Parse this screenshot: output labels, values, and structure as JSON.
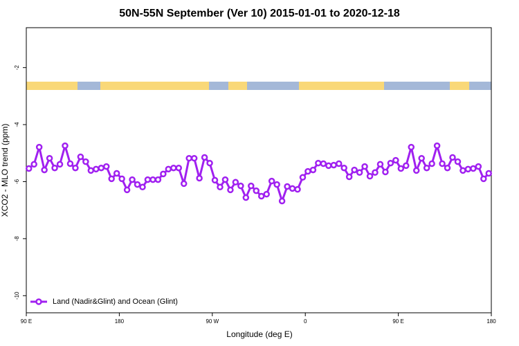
{
  "chart_data": {
    "type": "line",
    "title": "50N-55N September (Ver 10)   2015-01-01 to 2020-12-18",
    "x_label": "Longitude (deg E)",
    "y_label": "XCO2 - MLO trend (ppm)",
    "xlim": [
      90,
      540
    ],
    "ylim": [
      -10.6,
      -0.6
    ],
    "xticks": [
      {
        "value": 90,
        "label": "90 E"
      },
      180,
      {
        "value": 270,
        "label": "90 W"
      },
      {
        "value": 360,
        "label": "0"
      },
      {
        "value": 450,
        "label": "90 E"
      },
      {
        "value": 540,
        "label": "180"
      }
    ],
    "yticks": [
      -2,
      -4,
      -6,
      -8,
      -10
    ],
    "legend": "bottom-left",
    "x": [
      92.5,
      97.5,
      102.5,
      107.5,
      112.5,
      117.5,
      122.5,
      127.5,
      132.5,
      137.5,
      142.5,
      147.5,
      152.5,
      157.5,
      162.5,
      167.5,
      172.5,
      177.5,
      182.5,
      187.5,
      192.5,
      197.5,
      202.5,
      207.5,
      212.5,
      217.5,
      222.5,
      227.5,
      232.5,
      237.5,
      242.5,
      247.5,
      252.5,
      257.5,
      262.5,
      267.5,
      272.5,
      277.5,
      282.5,
      287.5,
      292.5,
      297.5,
      302.5,
      307.5,
      312.5,
      317.5,
      322.5,
      327.5,
      332.5,
      337.5,
      342.5,
      347.5,
      352.5,
      357.5,
      362.5,
      367.5,
      372.5,
      377.5,
      382.5,
      387.5,
      392.5,
      397.5,
      402.5,
      407.5,
      412.5,
      417.5,
      422.5,
      427.5,
      432.5,
      437.5,
      442.5,
      447.5,
      452.5,
      457.5,
      462.5,
      467.5,
      472.5,
      477.5,
      482.5,
      487.5,
      492.5,
      497.5,
      502.5,
      507.5,
      512.5,
      517.5,
      522.5,
      527.5,
      532.5,
      537.5
    ],
    "series": [
      {
        "name": "Land (Nadir&Glint) and Ocean (Glint)",
        "color": "#a020f0",
        "values": [
          -5.54,
          -5.39,
          -4.79,
          -5.59,
          -5.18,
          -5.52,
          -5.39,
          -4.74,
          -5.37,
          -5.52,
          -5.13,
          -5.3,
          -5.61,
          -5.56,
          -5.52,
          -5.47,
          -5.9,
          -5.71,
          -5.9,
          -6.29,
          -5.93,
          -6.1,
          -6.19,
          -5.93,
          -5.93,
          -5.93,
          -5.73,
          -5.56,
          -5.52,
          -5.52,
          -6.07,
          -5.18,
          -5.18,
          -5.88,
          -5.15,
          -5.35,
          -5.95,
          -6.19,
          -5.93,
          -6.29,
          -6.02,
          -6.15,
          -6.56,
          -6.15,
          -6.32,
          -6.51,
          -6.44,
          -5.98,
          -6.1,
          -6.68,
          -6.17,
          -6.24,
          -6.27,
          -5.85,
          -5.64,
          -5.59,
          -5.35,
          -5.37,
          -5.44,
          -5.42,
          -5.37,
          -5.52,
          -5.83,
          -5.59,
          -5.68,
          -5.47,
          -5.81,
          -5.68,
          -5.39,
          -5.66,
          -5.35,
          -5.25,
          -5.54,
          -5.44,
          -4.79,
          -5.61,
          -5.18,
          -5.52,
          -5.37,
          -4.74,
          -5.37,
          -5.52,
          -5.15,
          -5.3,
          -5.61,
          -5.56,
          -5.54,
          -5.47,
          -5.9,
          -5.71
        ]
      }
    ]
  }
}
